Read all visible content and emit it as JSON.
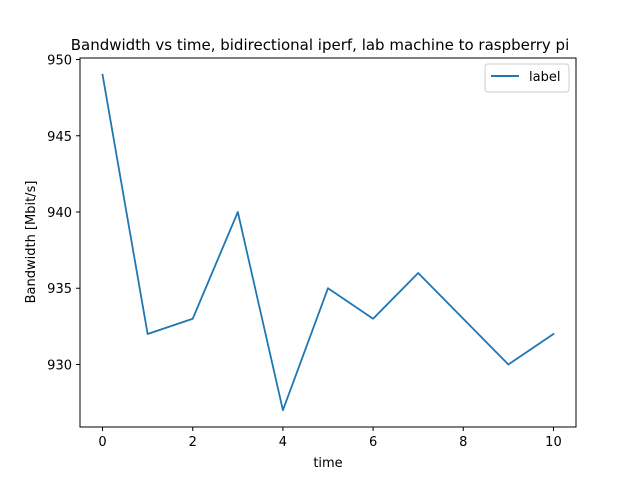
{
  "chart_data": {
    "type": "line",
    "title": "Bandwidth vs time, bidirectional iperf, lab machine to raspberry pi",
    "xlabel": "time",
    "ylabel": "Bandwidth [Mbit/s]",
    "xlim": [
      -0.5,
      10.5
    ],
    "ylim": [
      925.9,
      950.1
    ],
    "xticks": [
      0,
      2,
      4,
      6,
      8,
      10
    ],
    "yticks": [
      930,
      935,
      940,
      945,
      950
    ],
    "grid": false,
    "legend_position": "top-right",
    "series": [
      {
        "name": "label",
        "color": "#1f77b4",
        "x": [
          0,
          1,
          2,
          3,
          4,
          5,
          6,
          7,
          8,
          9,
          10
        ],
        "y": [
          949,
          932,
          933,
          940,
          927,
          935,
          933,
          936,
          933,
          930,
          932
        ]
      }
    ]
  }
}
